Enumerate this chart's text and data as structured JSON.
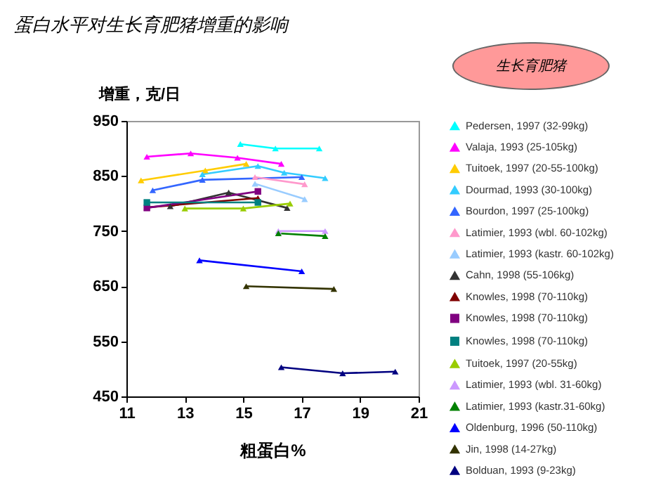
{
  "chart_data": {
    "type": "line",
    "title": "蛋白水平对生长育肥猪增重的影响",
    "xlabel": "粗蛋白%",
    "ylabel": "增重，克/日",
    "annotations": [
      "生长育肥猪"
    ],
    "xlim": [
      11,
      21
    ],
    "xticks": [
      11,
      13,
      15,
      17,
      19,
      21
    ],
    "ylim": [
      450,
      950
    ],
    "yticks": [
      450,
      550,
      650,
      750,
      850,
      950
    ],
    "grid": false,
    "legend": "right",
    "marker": "triangle",
    "series": [
      {
        "name": "Pedersen, 1997 (32-99kg)",
        "color": "#00ffff",
        "x": [
          14.9,
          16.1,
          17.6
        ],
        "values": [
          908,
          900,
          900
        ]
      },
      {
        "name": "Valaja, 1993 (25-105kg)",
        "color": "#ff00ff",
        "x": [
          11.7,
          13.2,
          14.8,
          16.3
        ],
        "values": [
          885,
          891,
          883,
          872
        ]
      },
      {
        "name": "Tuitoek, 1997 (20-55-100kg)",
        "color": "#ffcc00",
        "x": [
          11.5,
          13.7,
          15.1
        ],
        "values": [
          842,
          860,
          872
        ]
      },
      {
        "name": "Dourmad, 1993 (30-100kg)",
        "color": "#33ccff",
        "x": [
          13.6,
          15.5,
          16.4,
          17.8
        ],
        "values": [
          853,
          868,
          856,
          846
        ]
      },
      {
        "name": "Bourdon, 1997 (25-100kg)",
        "color": "#3366ff",
        "x": [
          11.9,
          13.6,
          17.0
        ],
        "values": [
          824,
          843,
          848
        ]
      },
      {
        "name": "Latimier, 1993 (wbl. 60-102kg)",
        "color": "#ff99cc",
        "x": [
          15.4,
          17.1
        ],
        "values": [
          848,
          835
        ]
      },
      {
        "name": "Latimier, 1993 (kastr. 60-102kg)",
        "color": "#99ccff",
        "x": [
          15.4,
          17.1
        ],
        "values": [
          836,
          808
        ]
      },
      {
        "name": "Cahn, 1998 (55-106kg)",
        "color": "#333333",
        "x": [
          12.5,
          14.5,
          16.5
        ],
        "values": [
          795,
          820,
          792
        ]
      },
      {
        "name": "Knowles, 1998 (70-110kg)",
        "color": "#800000",
        "x": [
          11.7,
          15.5
        ],
        "values": [
          793,
          810
        ]
      },
      {
        "name": "Knowles, 1998 (70-110kg)",
        "color": "#800080",
        "marker": "square",
        "x": [
          11.7,
          15.5
        ],
        "values": [
          792,
          822
        ]
      },
      {
        "name": "Knowles, 1998 (70-110kg)",
        "color": "#008080",
        "marker": "square",
        "x": [
          11.7,
          15.5
        ],
        "values": [
          802,
          802
        ]
      },
      {
        "name": "Tuitoek, 1997 (20-55kg)",
        "color": "#99cc00",
        "x": [
          13.0,
          15.0,
          16.6
        ],
        "values": [
          791,
          791,
          800
        ]
      },
      {
        "name": "Latimier, 1993 (wbl. 31-60kg)",
        "color": "#cc99ff",
        "x": [
          16.2,
          17.8
        ],
        "values": [
          750,
          750
        ]
      },
      {
        "name": "Latimier, 1993 (kastr.31-60kg)",
        "color": "#008000",
        "x": [
          16.2,
          17.8
        ],
        "values": [
          746,
          741
        ]
      },
      {
        "name": "Oldenburg, 1996 (50-110kg)",
        "color": "#0000ff",
        "x": [
          13.5,
          17.0
        ],
        "values": [
          697,
          677
        ]
      },
      {
        "name": "Jin, 1998 (14-27kg)",
        "color": "#333300",
        "x": [
          15.1,
          18.1
        ],
        "values": [
          650,
          645
        ]
      },
      {
        "name": "Bolduan, 1993 (9-23kg)",
        "color": "#000080",
        "x": [
          16.3,
          18.4,
          20.2
        ],
        "values": [
          503,
          492,
          495
        ]
      }
    ]
  }
}
